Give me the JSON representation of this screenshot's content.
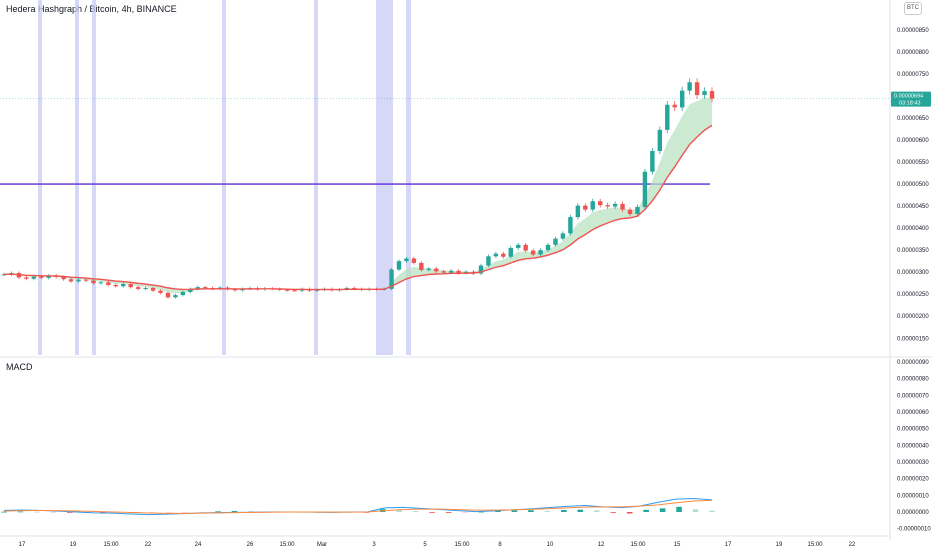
{
  "header": {
    "title": "Hedera Hashgraph / Bitcoin, 4h, BINANCE",
    "currency_button": "BTC",
    "indicator_label": "MACD"
  },
  "colors": {
    "up": "#26a69a",
    "down": "#ef5350",
    "ema_fast": "#ef5350",
    "ema_fill": "#b7dfbf",
    "support_line": "#5b2fd1",
    "highlight": "#c9caf5",
    "macd_line": "#2e9cf5",
    "signal_line": "#ff8a3d",
    "hist_up_strong": "#26a69a",
    "hist_up_weak": "#b2dfdb",
    "hist_down_strong": "#ef5350",
    "hist_down_weak": "#ffcdd2",
    "price_tag": "#26a69a"
  },
  "chart_data": [
    {
      "type": "candlestick",
      "title": "Hedera Hashgraph / Bitcoin, 4h, BINANCE",
      "y_ticks": [
        "0.00000850",
        "0.00000800",
        "0.00000750",
        "0.00000700",
        "0.00000650",
        "0.00000600",
        "0.00000550",
        "0.00000500",
        "0.00000450",
        "0.00000400",
        "0.00000350",
        "0.00000300",
        "0.00000250",
        "0.00000200",
        "0.00000150"
      ],
      "ylim": [
        1.12e-06,
        8.95e-06
      ],
      "x_ticks": [
        "17",
        "19",
        "15:00",
        "22",
        "24",
        "26",
        "15:00",
        "Mar",
        "3",
        "5",
        "15:00",
        "8",
        "10",
        "12",
        "15:00",
        "15",
        "17",
        "19",
        "15:00",
        "22"
      ],
      "current_price": "0.00000694",
      "countdown": "03:18:43",
      "support_level": 5e-06,
      "highlight_bands": [
        [
          38,
          42
        ],
        [
          75,
          79
        ],
        [
          92,
          96
        ],
        [
          222,
          226
        ],
        [
          314,
          318
        ],
        [
          376,
          393
        ],
        [
          406,
          411
        ]
      ],
      "series_close": [
        2.95e-06,
        2.98e-06,
        2.88e-06,
        2.85e-06,
        2.9e-06,
        2.87e-06,
        2.92e-06,
        2.89e-06,
        2.84e-06,
        2.79e-06,
        2.83e-06,
        2.81e-06,
        2.75e-06,
        2.77e-06,
        2.71e-06,
        2.68e-06,
        2.73e-06,
        2.66e-06,
        2.62e-06,
        2.64e-06,
        2.58e-06,
        2.53e-06,
        2.43e-06,
        2.48e-06,
        2.55e-06,
        2.62e-06,
        2.66e-06,
        2.64e-06,
        2.62e-06,
        2.65e-06,
        2.61e-06,
        2.59e-06,
        2.62e-06,
        2.64e-06,
        2.61e-06,
        2.63e-06,
        2.62e-06,
        2.6e-06,
        2.59e-06,
        2.58e-06,
        2.62e-06,
        2.58e-06,
        2.6e-06,
        2.62e-06,
        2.59e-06,
        2.61e-06,
        2.64e-06,
        2.62e-06,
        2.6e-06,
        2.62e-06,
        2.61e-06,
        2.62e-06,
        3.06e-06,
        3.25e-06,
        3.31e-06,
        3.21e-06,
        3.05e-06,
        3.08e-06,
        3.02e-06,
        2.99e-06,
        3.03e-06,
        2.98e-06,
        3.01e-06,
        2.97e-06,
        3.15e-06,
        3.36e-06,
        3.42e-06,
        3.35e-06,
        3.55e-06,
        3.62e-06,
        3.49e-06,
        3.4e-06,
        3.5e-06,
        3.62e-06,
        3.76e-06,
        3.88e-06,
        4.25e-06,
        4.51e-06,
        4.42e-06,
        4.61e-06,
        4.52e-06,
        4.49e-06,
        4.55e-06,
        4.42e-06,
        4.32e-06,
        4.48e-06,
        5.28e-06,
        5.75e-06,
        6.23e-06,
        6.8e-06,
        6.74e-06,
        7.12e-06,
        7.31e-06,
        7.02e-06,
        7.11e-06,
        6.94e-06
      ]
    },
    {
      "type": "line",
      "title": "MACD",
      "y_ticks": [
        "0.00000090",
        "0.00000080",
        "0.00000070",
        "0.00000060",
        "0.00000050",
        "0.00000040",
        "0.00000030",
        "0.00000020",
        "0.00000010",
        "0.00000000",
        "-0.00000010"
      ],
      "ylim": [
        -1.08e-07,
        9.12e-07
      ],
      "series": [
        {
          "name": "MACD",
          "values": [
            1e-08,
            1.2e-08,
            1e-08,
            5e-09,
            0.0,
            -5e-09,
            -7e-09,
            -1.2e-08,
            -1.6e-08,
            -1.3e-08,
            -9e-09,
            -5e-09,
            -3e-09,
            -2e-09,
            -1e-09,
            0.0,
            0.0,
            -1e-09,
            -2e-09,
            0.0,
            0.0,
            2.5e-08,
            2.8e-08,
            2.2e-08,
            1.5e-08,
            8e-09,
            2e-09,
            7e-09,
            1.3e-08,
            1.9e-08,
            2.6e-08,
            3.4e-08,
            3.9e-08,
            3.1e-08,
            2.6e-08,
            3.5e-08,
            5.8e-08,
            7.7e-08,
            8.1e-08,
            7.3e-08
          ]
        },
        {
          "name": "Signal",
          "values": [
            5e-09,
            8e-09,
            9e-09,
            8e-09,
            6e-09,
            3e-09,
            0.0,
            -3e-09,
            -6e-09,
            -8e-09,
            -8e-09,
            -7e-09,
            -5e-09,
            -3e-09,
            -2e-09,
            -1e-09,
            0.0,
            0.0,
            -1e-09,
            -1e-09,
            0.0,
            8e-09,
            1.5e-08,
            1.7e-08,
            1.7e-08,
            1.4e-08,
            1.1e-08,
            1.1e-08,
            1.3e-08,
            1.6e-08,
            2e-08,
            2.5e-08,
            2.9e-08,
            3.1e-08,
            3.1e-08,
            3.5e-08,
            4.3e-08,
            5.5e-08,
            6.6e-08,
            7e-08
          ]
        }
      ],
      "histogram": [
        2e-09,
        3e-09,
        2e-09,
        1e-09,
        -1e-09,
        -2e-09,
        -4e-09,
        -3e-09,
        -5e-09,
        -4e-09,
        -3e-09,
        -2e-09,
        -1e-09,
        4e-09,
        6e-09,
        5e-09,
        3e-09,
        2e-09,
        1e-09,
        0.0,
        1e-09,
        0.0,
        -1e-09,
        1.7e-08,
        1.2e-08,
        6e-09,
        -2e-09,
        -5e-09,
        -3e-09,
        2e-09,
        6e-09,
        9e-09,
        1.1e-08,
        7e-09,
        1.2e-08,
        1.4e-08,
        1e-08,
        -4e-09,
        -9e-09,
        1.3e-08,
        2.2e-08,
        3.1e-08,
        1.6e-08,
        8e-09
      ]
    }
  ]
}
